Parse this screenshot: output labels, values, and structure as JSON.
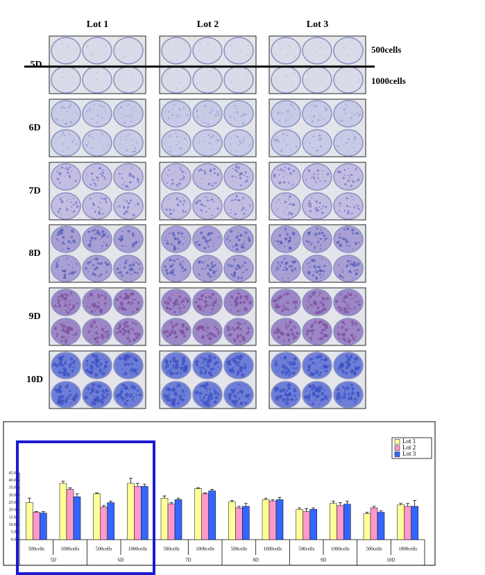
{
  "photo_panel": {
    "columns": [
      "Lot 1",
      "Lot 2",
      "Lot 3"
    ],
    "rows": [
      "5D",
      "6D",
      "7D",
      "8D",
      "9D",
      "10D"
    ],
    "side_labels": [
      "500cells",
      "1000cells"
    ]
  },
  "chart_data": {
    "type": "bar",
    "categories": [
      "500cells",
      "1000cells",
      "500cells",
      "1000cells",
      "500cells",
      "1000cells",
      "500cells",
      "1000cells",
      "500cells",
      "1000cells",
      "500cells",
      "1000cells"
    ],
    "groups": [
      "5D",
      "6D",
      "7D",
      "8D",
      "9D",
      "10D"
    ],
    "ylim": [
      0,
      45
    ],
    "yticks": [
      {
        "value": 0,
        "label": "0.0"
      },
      {
        "value": 5,
        "label": "5.0"
      },
      {
        "value": 10,
        "label": "10.0"
      },
      {
        "value": 15,
        "label": "15.0"
      },
      {
        "value": 20,
        "label": "20.0"
      },
      {
        "value": 25,
        "label": "25.0"
      },
      {
        "value": 30,
        "label": "30.0"
      },
      {
        "value": 35,
        "label": "35.0"
      },
      {
        "value": 40,
        "label": "40.0"
      },
      {
        "value": 45,
        "label": "45.0"
      }
    ],
    "legend": "upper right",
    "series": [
      {
        "name": "Lot 1",
        "color": "#ffff99",
        "values": [
          25,
          38,
          31,
          38,
          28,
          34.5,
          25.5,
          27,
          20.5,
          24.5,
          17.5,
          23.5
        ],
        "errors": [
          3,
          1.5,
          0.5,
          3.5,
          1.5,
          0.5,
          1,
          1,
          1,
          1.5,
          1,
          1
        ]
      },
      {
        "name": "Lot 2",
        "color": "#ff99cc",
        "values": [
          18.5,
          34,
          22,
          36,
          24,
          31,
          21.5,
          26,
          19,
          23,
          21.5,
          22.5
        ],
        "errors": [
          0.5,
          1,
          1,
          2,
          1,
          0.5,
          1,
          1,
          2,
          2,
          1,
          2
        ]
      },
      {
        "name": "Lot 3",
        "color": "#3366ff",
        "values": [
          18,
          29,
          25,
          36,
          27,
          33,
          22.5,
          27,
          20.5,
          24,
          18.5,
          22.5
        ],
        "errors": [
          1,
          2,
          1,
          1.5,
          1,
          1,
          2,
          1.5,
          1,
          2,
          1,
          4
        ]
      }
    ]
  }
}
